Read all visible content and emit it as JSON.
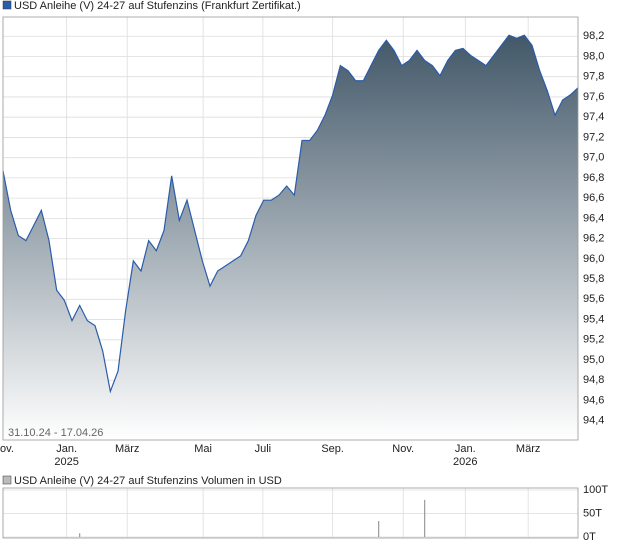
{
  "chart_data": [
    {
      "type": "area",
      "title": "USD Anleihe (V) 24-27 auf Stufenzins (Frankfurt Zertifikat.)",
      "date_range": "31.10.24 - 17.04.26",
      "color": "#2a5caa",
      "values": [
        96.87,
        96.48,
        96.23,
        96.18,
        96.33,
        96.48,
        96.18,
        95.69,
        95.59,
        95.39,
        95.54,
        95.39,
        95.34,
        95.09,
        94.69,
        94.89,
        95.49,
        95.98,
        95.88,
        96.18,
        96.08,
        96.28,
        96.82,
        96.38,
        96.58,
        96.28,
        95.98,
        95.73,
        95.88,
        95.93,
        95.98,
        96.03,
        96.18,
        96.43,
        96.58,
        96.58,
        96.63,
        96.72,
        96.63,
        97.17,
        97.17,
        97.27,
        97.42,
        97.62,
        97.91,
        97.86,
        97.76,
        97.76,
        97.91,
        98.06,
        98.16,
        98.06,
        97.91,
        97.96,
        98.06,
        97.96,
        97.91,
        97.81,
        97.96,
        98.06,
        98.08,
        98.01,
        97.96,
        97.91,
        98.01,
        98.11,
        98.21,
        98.18,
        98.21,
        98.11,
        97.86,
        97.66,
        97.42,
        97.57,
        97.62,
        97.69
      ],
      "xlim": [
        0,
        75
      ],
      "xticks": [
        {
          "value": 0,
          "label": "Nov."
        },
        {
          "value": 8.3,
          "label": "Jan.\n2025"
        },
        {
          "value": 16.2,
          "label": "März"
        },
        {
          "value": 26.1,
          "label": "Mai"
        },
        {
          "value": 33.9,
          "label": "Juli"
        },
        {
          "value": 43.0,
          "label": "Sep."
        },
        {
          "value": 52.2,
          "label": "Nov."
        },
        {
          "value": 60.3,
          "label": "Jan.\n2026"
        },
        {
          "value": 68.5,
          "label": "März"
        }
      ],
      "ylim": [
        94.21,
        98.39
      ],
      "yticks": [
        {
          "value": 94.4,
          "label": "94,4"
        },
        {
          "value": 94.6,
          "label": "94,6"
        },
        {
          "value": 94.8,
          "label": "94,8"
        },
        {
          "value": 95.0,
          "label": "95,0"
        },
        {
          "value": 95.2,
          "label": "95,2"
        },
        {
          "value": 95.4,
          "label": "95,4"
        },
        {
          "value": 95.6,
          "label": "95,6"
        },
        {
          "value": 95.8,
          "label": "95,8"
        },
        {
          "value": 96.0,
          "label": "96,0"
        },
        {
          "value": 96.2,
          "label": "96,2"
        },
        {
          "value": 96.4,
          "label": "96,4"
        },
        {
          "value": 96.6,
          "label": "96,6"
        },
        {
          "value": 96.8,
          "label": "96,8"
        },
        {
          "value": 97.0,
          "label": "97,0"
        },
        {
          "value": 97.2,
          "label": "97,2"
        },
        {
          "value": 97.4,
          "label": "97,4"
        },
        {
          "value": 97.6,
          "label": "97,6"
        },
        {
          "value": 97.8,
          "label": "97,8"
        },
        {
          "value": 98.0,
          "label": "98,0"
        },
        {
          "value": 98.2,
          "label": "98,2"
        }
      ],
      "grid": true
    },
    {
      "type": "bar",
      "title": "USD Anleihe (V) 24-27 auf Stufenzins Volumen in USD",
      "color": "#999999",
      "values": [
        0,
        0,
        0,
        0,
        0,
        0,
        0,
        0,
        0,
        0,
        8000,
        0,
        0,
        0,
        0,
        0,
        0,
        0,
        0,
        0,
        0,
        0,
        0,
        0,
        0,
        0,
        0,
        0,
        0,
        0,
        0,
        0,
        0,
        0,
        0,
        0,
        0,
        0,
        0,
        0,
        0,
        0,
        0,
        0,
        0,
        0,
        0,
        0,
        0,
        34000,
        0,
        0,
        0,
        0,
        0,
        79000,
        0,
        0,
        0,
        0,
        0,
        0,
        0,
        0,
        0,
        0,
        0,
        0,
        0,
        0,
        0,
        0,
        0,
        0,
        0,
        0
      ],
      "ylim": [
        0,
        100000
      ],
      "yticks": [
        {
          "value": 0,
          "label": "0T"
        },
        {
          "value": 50000,
          "label": "50T"
        },
        {
          "value": 100000,
          "label": "100T"
        }
      ],
      "grid": true
    }
  ]
}
